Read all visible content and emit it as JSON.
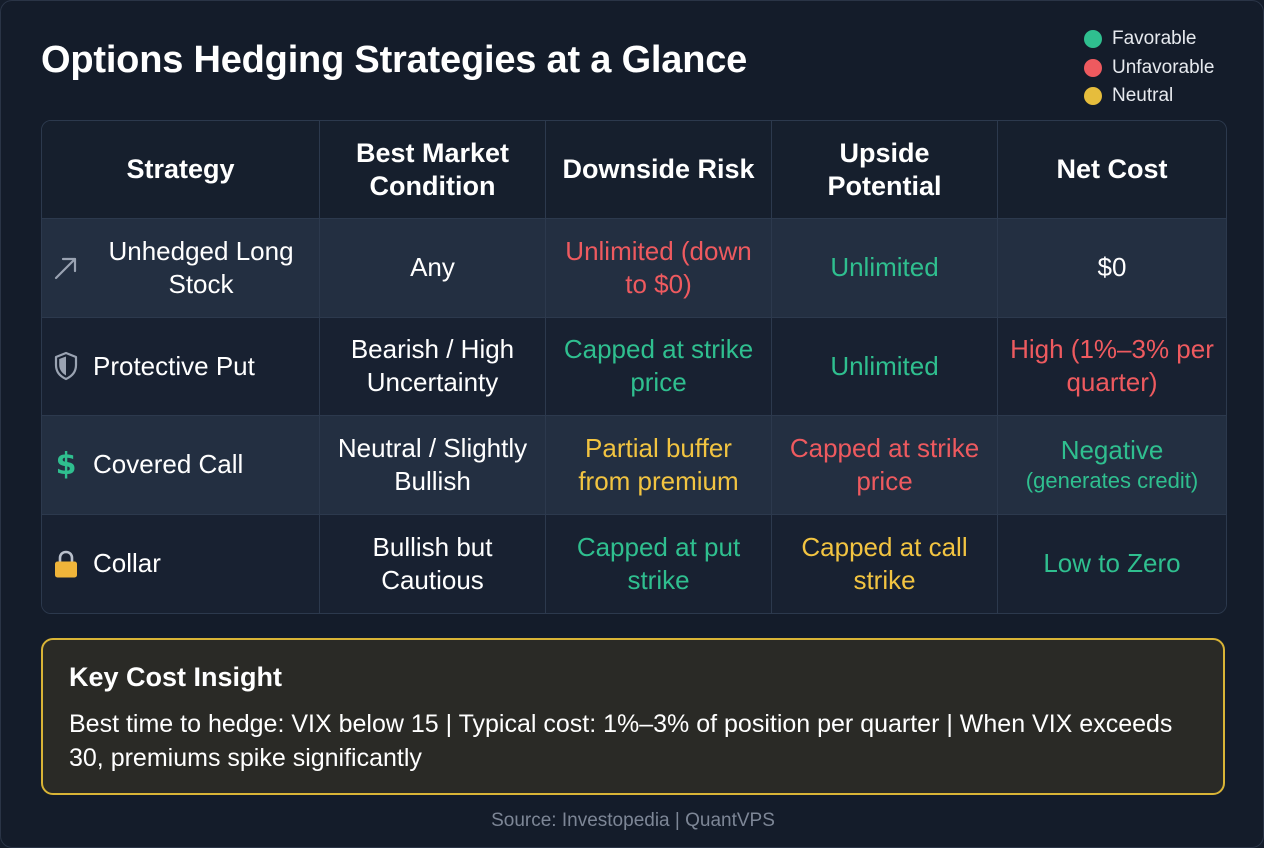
{
  "title": "Options Hedging Strategies at a Glance",
  "legend": [
    {
      "label": "Favorable",
      "color": "#2fbf8f"
    },
    {
      "label": "Unfavorable",
      "color": "#ee5a5f"
    },
    {
      "label": "Neutral",
      "color": "#f2c441"
    }
  ],
  "table": {
    "headers": [
      "Strategy",
      "Best Market Condition",
      "Downside Risk",
      "Upside Potential",
      "Net Cost"
    ],
    "rows": [
      {
        "icon": "trend-up-arrow-icon",
        "strategy": "Unhedged Long Stock",
        "condition": "Any",
        "downside": "Unlimited (down to $0)",
        "downside_rating": "unfavorable",
        "upside": "Unlimited",
        "upside_rating": "favorable",
        "cost": "$0",
        "cost_rating": "none"
      },
      {
        "icon": "shield-icon",
        "strategy": "Protective Put",
        "condition": "Bearish / High Uncertainty",
        "downside": "Capped at strike price",
        "downside_rating": "favorable",
        "upside": "Unlimited",
        "upside_rating": "favorable",
        "cost": "High (1%–3% per quarter)",
        "cost_rating": "unfavorable"
      },
      {
        "icon": "dollar-sign-icon",
        "strategy": "Covered Call",
        "condition": "Neutral / Slightly Bullish",
        "downside": "Partial buffer from premium",
        "downside_rating": "neutral",
        "upside": "Capped at strike price",
        "upside_rating": "unfavorable",
        "cost": "Negative",
        "cost_note": "(generates credit)",
        "cost_rating": "favorable"
      },
      {
        "icon": "padlock-icon",
        "strategy": "Collar",
        "condition": "Bullish but Cautious",
        "downside": "Capped at put strike",
        "downside_rating": "favorable",
        "upside": "Capped at call strike",
        "upside_rating": "neutral",
        "cost": "Low to Zero",
        "cost_rating": "favorable"
      }
    ]
  },
  "insight": {
    "title": "Key Cost Insight",
    "body": "Best time to hedge: VIX below 15 | Typical cost: 1%–3% of position per quarter | When VIX exceeds 30, premiums spike significantly"
  },
  "source": "Source: Investopedia | QuantVPS"
}
